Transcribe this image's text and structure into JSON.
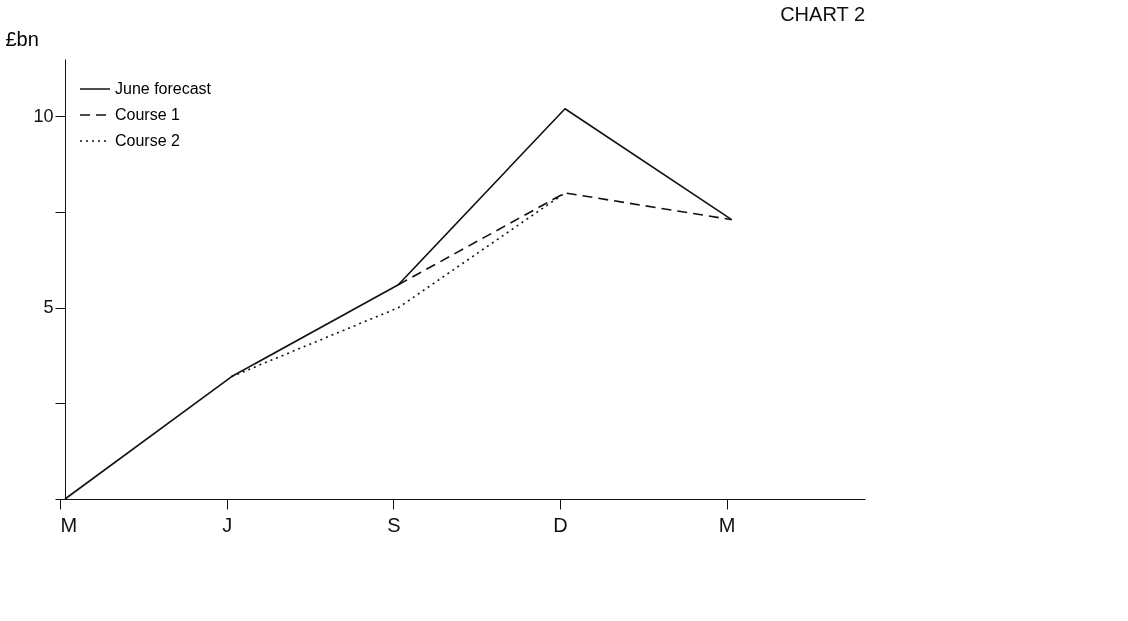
{
  "chart_data": {
    "type": "line",
    "title": "CHART 2",
    "ylabel": "£bn",
    "categories": [
      "M",
      "J",
      "S",
      "D",
      "M"
    ],
    "series": [
      {
        "name": "June forecast",
        "color": "#111111",
        "line_style": "solid",
        "values": [
          0,
          3.2,
          5.6,
          10.2,
          7.3
        ]
      },
      {
        "name": "Course 1",
        "color": "#111111",
        "line_style": "dashed",
        "values": [
          null,
          null,
          5.6,
          8.0,
          7.3
        ]
      },
      {
        "name": "Course 2",
        "color": "#111111",
        "line_style": "dotted",
        "values": [
          null,
          3.2,
          5.0,
          8.0,
          null
        ]
      }
    ],
    "ylim": [
      0,
      11.5
    ],
    "yticks": [
      {
        "value": 0,
        "label": null
      },
      {
        "value": 2.5,
        "label": null
      },
      5,
      {
        "value": 7.5,
        "label": null
      },
      10
    ],
    "grid": false,
    "legend": "top left",
    "marker": "none"
  }
}
